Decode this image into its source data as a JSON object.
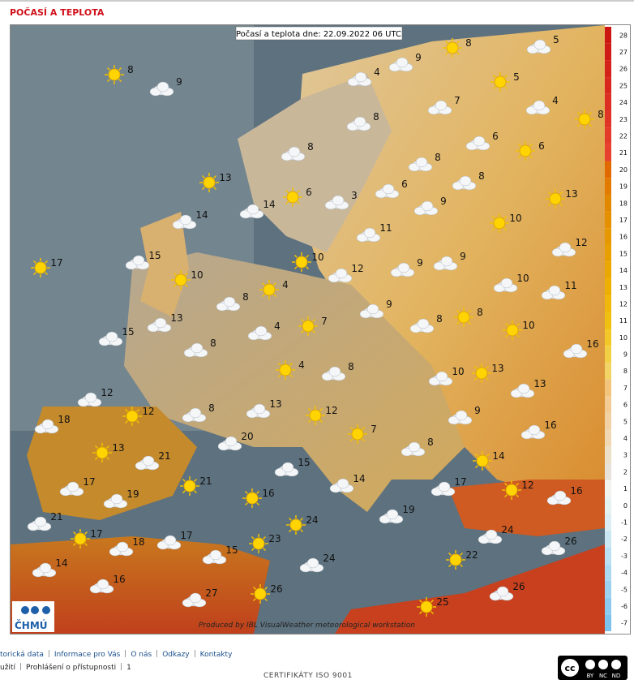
{
  "header": {
    "title": "POČASÍ A TEPLOTA"
  },
  "map": {
    "caption": "Počasí a teplota dne: 22.09.2022 06 UTC",
    "credit": "Produced by IBL VisualWeather meteorological workstation",
    "logo": "ČHMÚ",
    "temperatures": [
      8,
      5,
      9,
      8,
      9,
      4,
      5,
      7,
      4,
      8,
      8,
      6,
      6,
      8,
      8,
      13,
      8,
      6,
      6,
      3,
      9,
      13,
      14,
      14,
      10,
      11,
      12,
      10,
      9,
      9,
      17,
      15,
      12,
      10,
      10,
      11,
      4,
      8,
      9,
      8,
      13,
      8,
      10,
      15,
      4,
      7,
      8,
      16,
      4,
      8,
      10,
      13,
      13,
      12,
      12,
      8,
      13,
      12,
      9,
      18,
      7,
      16,
      20,
      13,
      8,
      21,
      14,
      15,
      17,
      21,
      14,
      17,
      12,
      16,
      19,
      16,
      19,
      21,
      24,
      24,
      26,
      17,
      18,
      17,
      23,
      15,
      24,
      22,
      14,
      16,
      26,
      26,
      27,
      25
    ]
  },
  "legend": {
    "ticks": [
      -7,
      -6,
      -5,
      -4,
      -3,
      -2,
      -1,
      0,
      1,
      2,
      3,
      4,
      5,
      6,
      7,
      8,
      9,
      10,
      11,
      12,
      13,
      14,
      15,
      16,
      17,
      18,
      19,
      20,
      21,
      22,
      23,
      24,
      25,
      26,
      27,
      28
    ],
    "colors": [
      "#7cc4ee",
      "#8ccbef",
      "#9cd2f0",
      "#acd9f2",
      "#bce0f3",
      "#cce7f4",
      "#dceef5",
      "#e4f2f2",
      "#f2f2ee",
      "#e6e2da",
      "#ece0c8",
      "#f0d8b4",
      "#f2d2a4",
      "#f2cc94",
      "#f2c47c",
      "#f2d466",
      "#f2d046",
      "#f2c828",
      "#f0c010",
      "#f0b808",
      "#eeb000",
      "#eaa800",
      "#e8a000",
      "#e69800",
      "#e49000",
      "#e28800",
      "#e27a00",
      "#e06a00",
      "#e8402e",
      "#e43a2a",
      "#e03426",
      "#dc2e22",
      "#d8281e",
      "#d4221a",
      "#d01c16",
      "#cc1612"
    ]
  },
  "footer": {
    "links": [
      "torická data",
      "Informace pro Vás",
      "O nás",
      "Odkazy",
      "Kontakty"
    ],
    "links2": [
      "užití",
      "Prohlášení o přístupnosti",
      "1"
    ],
    "iso": "CERTIFIKÁTY ISO 9001",
    "license": {
      "logo": "cc",
      "terms": [
        "BY",
        "NC",
        "ND"
      ]
    }
  }
}
